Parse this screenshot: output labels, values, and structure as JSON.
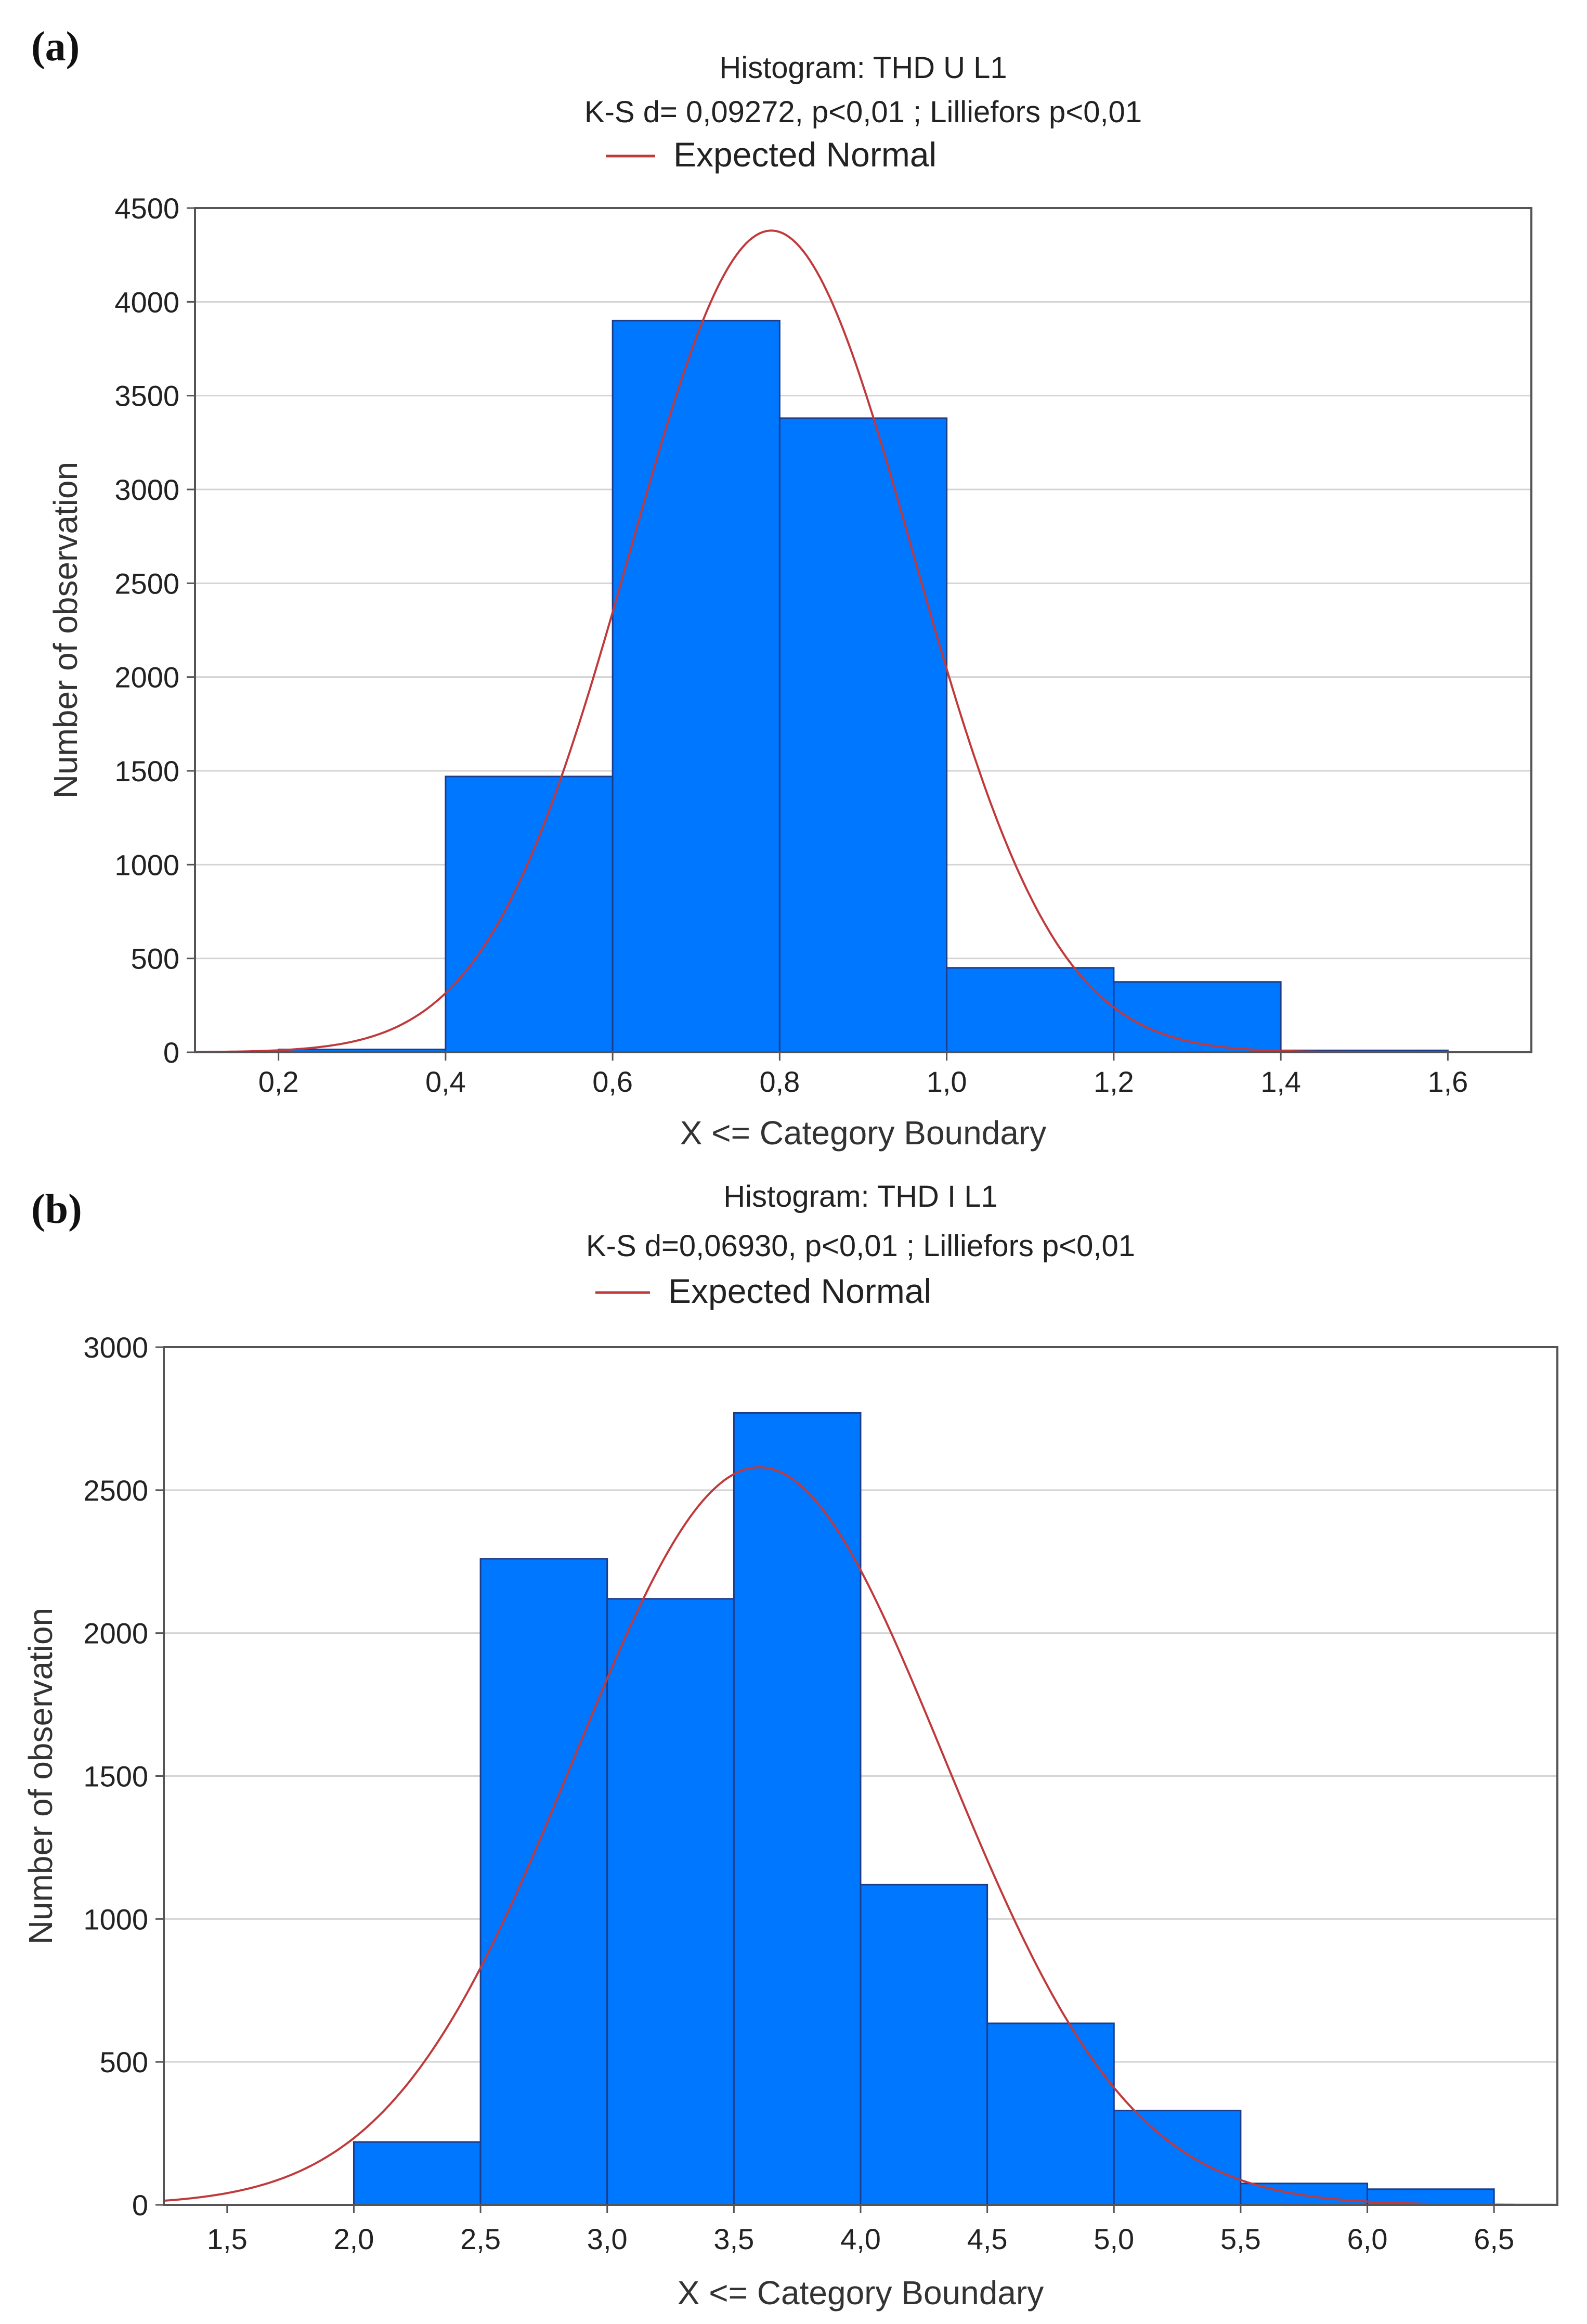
{
  "figure": {
    "panels": [
      {
        "label": "(a)"
      },
      {
        "label": "(b)"
      }
    ]
  },
  "chart_data": [
    {
      "type": "bar",
      "title": "Histogram: THD U L1",
      "subtitle": "K-S d= 0,09272,  p<0,01 ; Lilliefors p<0,01",
      "legend": [
        "Expected Normal"
      ],
      "legend_placement": "top-center",
      "xlabel": "X <= Category Boundary",
      "ylabel": "Number of observation",
      "xlim": [
        0.1,
        1.7
      ],
      "ylim": [
        0,
        4500
      ],
      "grid": true,
      "x_ticks": [
        0.2,
        0.4,
        0.6,
        0.8,
        1.0,
        1.2,
        1.4,
        1.6
      ],
      "x_tick_labels": [
        "0,2",
        "0,4",
        "0,6",
        "0,8",
        "1,0",
        "1,2",
        "1,4",
        "1,6"
      ],
      "y_ticks": [
        0,
        500,
        1000,
        1500,
        2000,
        2500,
        3000,
        3500,
        4000,
        4500
      ],
      "y_tick_labels": [
        "0",
        "500",
        "1000",
        "1500",
        "2000",
        "2500",
        "3000",
        "3500",
        "4000",
        "4500"
      ],
      "bins": [
        {
          "from": 0.2,
          "to": 0.4,
          "value": 15
        },
        {
          "from": 0.4,
          "to": 0.6,
          "value": 1470
        },
        {
          "from": 0.6,
          "to": 0.8,
          "value": 3900
        },
        {
          "from": 0.8,
          "to": 1.0,
          "value": 3380
        },
        {
          "from": 1.0,
          "to": 1.2,
          "value": 450
        },
        {
          "from": 1.2,
          "to": 1.4,
          "value": 375
        },
        {
          "from": 1.4,
          "to": 1.6,
          "value": 10
        }
      ],
      "normal_curve": {
        "name": "Expected Normal",
        "mean": 0.79,
        "sd": 0.17,
        "peak": 4380
      },
      "colors": {
        "bar": "#0077ff",
        "bar_edge": "#1d3c8a",
        "curve": "#c0393b",
        "grid": "#d4d4d4",
        "frame": "#555555"
      }
    },
    {
      "type": "bar",
      "title": "Histogram: THD I L1",
      "subtitle": "K-S d=0,06930,  p<0,01 ; Lilliefors p<0,01",
      "legend": [
        "Expected Normal"
      ],
      "legend_placement": "top-center",
      "xlabel": "X <= Category Boundary",
      "ylabel": "Number of observation",
      "xlim": [
        1.25,
        6.75
      ],
      "ylim": [
        0,
        3000
      ],
      "grid": true,
      "x_ticks": [
        1.5,
        2.0,
        2.5,
        3.0,
        3.5,
        4.0,
        4.5,
        5.0,
        5.5,
        6.0,
        6.5
      ],
      "x_tick_labels": [
        "1,5",
        "2,0",
        "2,5",
        "3,0",
        "3,5",
        "4,0",
        "4,5",
        "5,0",
        "5,5",
        "6,0",
        "6,5"
      ],
      "y_ticks": [
        0,
        500,
        1000,
        1500,
        2000,
        2500,
        3000
      ],
      "y_tick_labels": [
        "0",
        "500",
        "1000",
        "1500",
        "2000",
        "2500",
        "3000"
      ],
      "bins": [
        {
          "from": 2.0,
          "to": 2.5,
          "value": 220
        },
        {
          "from": 2.5,
          "to": 3.0,
          "value": 2260
        },
        {
          "from": 3.0,
          "to": 3.5,
          "value": 2120
        },
        {
          "from": 3.5,
          "to": 4.0,
          "value": 2770
        },
        {
          "from": 4.0,
          "to": 4.5,
          "value": 1120
        },
        {
          "from": 4.5,
          "to": 5.0,
          "value": 635
        },
        {
          "from": 5.0,
          "to": 5.5,
          "value": 330
        },
        {
          "from": 5.5,
          "to": 6.0,
          "value": 75
        },
        {
          "from": 6.0,
          "to": 6.5,
          "value": 55
        }
      ],
      "normal_curve": {
        "name": "Expected Normal",
        "mean": 3.6,
        "sd": 0.73,
        "peak": 2580
      },
      "colors": {
        "bar": "#0077ff",
        "bar_edge": "#1d3c8a",
        "curve": "#c0393b",
        "grid": "#d4d4d4",
        "frame": "#555555"
      }
    }
  ]
}
